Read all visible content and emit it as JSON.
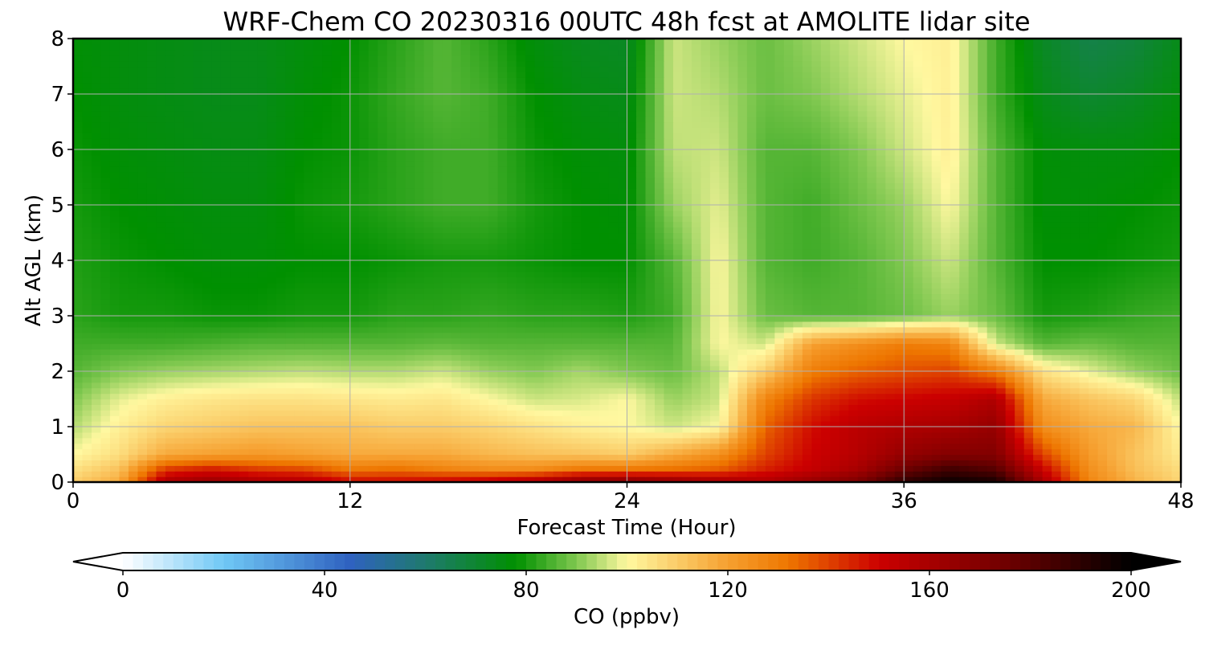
{
  "chart_data": {
    "type": "heatmap",
    "title": "WRF-Chem CO  20230316 00UTC 48h fcst at AMOLITE lidar site",
    "xlabel": "Forecast Time (Hour)",
    "ylabel": "Alt AGL (km)",
    "xlim": [
      0,
      48
    ],
    "ylim": [
      0,
      8
    ],
    "x_ticks": [
      0,
      12,
      24,
      36,
      48
    ],
    "x_tick_labels": [
      "0",
      "12",
      "24",
      "36",
      "48"
    ],
    "y_ticks": [
      0,
      1,
      2,
      3,
      4,
      5,
      6,
      7,
      8
    ],
    "y_tick_labels": [
      "0",
      "1",
      "2",
      "3",
      "4",
      "5",
      "6",
      "7",
      "8"
    ],
    "grid": true,
    "colorbar": {
      "label": "CO  (ppbv)",
      "range": [
        0,
        200
      ],
      "ticks": [
        0,
        40,
        80,
        120,
        160,
        200
      ],
      "tick_labels": [
        "0",
        "40",
        "80",
        "120",
        "160",
        "200"
      ],
      "extend": "both",
      "orientation": "horizontal",
      "placement": "bottom",
      "color_stops": [
        {
          "value": 0,
          "color": "#ffffff"
        },
        {
          "value": 20,
          "color": "#70c8f5"
        },
        {
          "value": 45,
          "color": "#2f62c0"
        },
        {
          "value": 60,
          "color": "#1f7a6e"
        },
        {
          "value": 78,
          "color": "#009000"
        },
        {
          "value": 90,
          "color": "#80c850"
        },
        {
          "value": 100,
          "color": "#fff8a0"
        },
        {
          "value": 120,
          "color": "#f6a030"
        },
        {
          "value": 132,
          "color": "#ee7600"
        },
        {
          "value": 150,
          "color": "#cc0000"
        },
        {
          "value": 175,
          "color": "#700000"
        },
        {
          "value": 200,
          "color": "#000000"
        }
      ]
    },
    "x_hours": [
      0,
      2,
      4,
      6,
      8,
      10,
      12,
      14,
      16,
      18,
      20,
      22,
      24,
      26,
      28,
      30,
      32,
      34,
      36,
      38,
      40,
      42,
      44,
      46,
      48
    ],
    "y_km": [
      0,
      0.25,
      0.5,
      1,
      1.5,
      2,
      2.5,
      3,
      4,
      5,
      6,
      7,
      8
    ],
    "values_ppbv": [
      [
        110,
        118,
        160,
        165,
        160,
        158,
        150,
        150,
        152,
        155,
        160,
        170,
        172,
        168,
        162,
        158,
        165,
        172,
        190,
        198,
        195,
        160,
        128,
        116,
        108
      ],
      [
        105,
        112,
        140,
        145,
        140,
        138,
        130,
        132,
        128,
        125,
        125,
        130,
        130,
        132,
        135,
        145,
        152,
        160,
        175,
        185,
        180,
        150,
        125,
        113,
        106
      ],
      [
        100,
        106,
        118,
        120,
        122,
        120,
        118,
        118,
        118,
        115,
        113,
        112,
        110,
        118,
        125,
        140,
        150,
        156,
        165,
        170,
        170,
        140,
        122,
        112,
        103
      ],
      [
        94,
        102,
        108,
        110,
        112,
        112,
        112,
        110,
        110,
        108,
        105,
        102,
        100,
        96,
        100,
        135,
        148,
        155,
        158,
        160,
        165,
        125,
        118,
        115,
        100
      ],
      [
        90,
        98,
        102,
        104,
        105,
        105,
        104,
        103,
        104,
        100,
        96,
        97,
        100,
        92,
        96,
        128,
        142,
        148,
        150,
        152,
        158,
        118,
        112,
        108,
        95
      ],
      [
        86,
        90,
        92,
        93,
        94,
        95,
        94,
        94,
        96,
        92,
        90,
        93,
        90,
        88,
        95,
        110,
        130,
        135,
        138,
        140,
        130,
        105,
        98,
        92,
        88
      ],
      [
        84,
        84,
        84,
        85,
        86,
        86,
        86,
        86,
        87,
        86,
        86,
        86,
        86,
        86,
        100,
        96,
        120,
        125,
        130,
        128,
        96,
        86,
        88,
        86,
        86
      ],
      [
        82,
        80,
        80,
        79,
        79,
        80,
        80,
        82,
        82,
        83,
        82,
        82,
        81,
        84,
        100,
        88,
        86,
        86,
        88,
        92,
        88,
        80,
        81,
        83,
        84
      ],
      [
        81,
        79,
        78,
        77,
        77,
        78,
        78,
        79,
        80,
        80,
        79,
        78,
        78,
        86,
        100,
        86,
        84,
        86,
        90,
        96,
        86,
        78,
        78,
        79,
        80
      ],
      [
        80,
        78,
        77,
        76,
        76,
        79,
        80,
        82,
        84,
        84,
        80,
        78,
        77,
        92,
        98,
        86,
        84,
        88,
        92,
        100,
        86,
        77,
        77,
        78,
        79
      ],
      [
        79,
        77,
        76,
        75,
        75,
        78,
        79,
        82,
        84,
        84,
        79,
        77,
        76,
        95,
        96,
        86,
        86,
        90,
        96,
        102,
        86,
        77,
        76,
        76,
        78
      ],
      [
        78,
        76,
        75,
        74,
        74,
        77,
        79,
        83,
        86,
        84,
        78,
        75,
        74,
        96,
        94,
        88,
        90,
        94,
        98,
        102,
        84,
        74,
        70,
        72,
        76
      ],
      [
        77,
        76,
        75,
        74,
        74,
        76,
        78,
        82,
        86,
        82,
        76,
        73,
        72,
        96,
        92,
        88,
        92,
        96,
        100,
        102,
        84,
        72,
        66,
        68,
        74
      ]
    ]
  }
}
